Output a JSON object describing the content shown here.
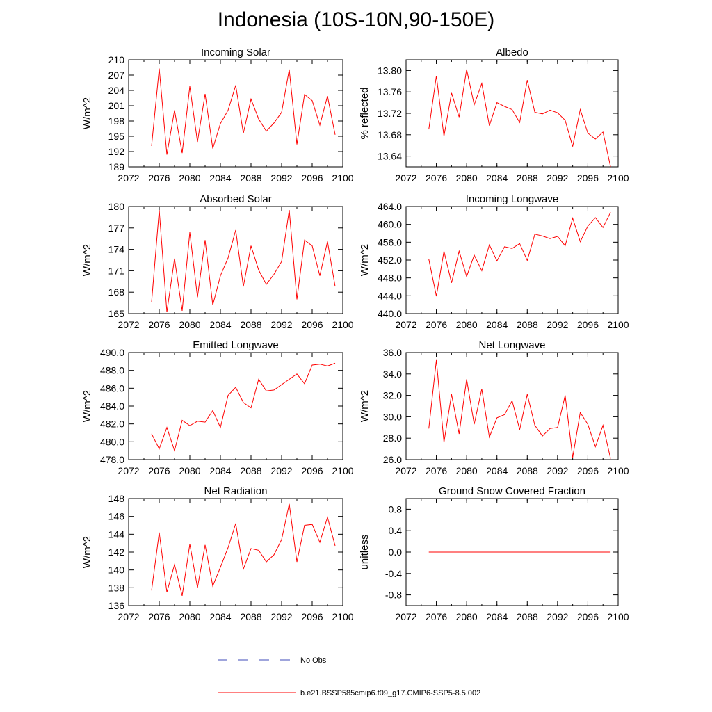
{
  "title": "Indonesia (10S-10N,90-150E)",
  "legend": [
    {
      "label": "No Obs",
      "color": "#3f4bb8",
      "style": "dashed"
    },
    {
      "label": "b.e21.BSSP585cmip6.f09_g17.CMIP6-SSP5-8.5.002",
      "color": "#ff0000",
      "style": "solid"
    }
  ],
  "chart_data": [
    {
      "type": "line",
      "title": "Incoming Solar",
      "ylabel": "W/m^2",
      "xlim": [
        2072,
        2100
      ],
      "xticks": [
        "2072",
        "2076",
        "2080",
        "2084",
        "2088",
        "2092",
        "2096",
        "2100"
      ],
      "ylim": [
        189,
        210
      ],
      "yticks": [
        "189",
        "192",
        "195",
        "198",
        "201",
        "204",
        "207",
        "210"
      ],
      "x": [
        2075,
        2076,
        2077,
        2078,
        2079,
        2080,
        2081,
        2082,
        2083,
        2084,
        2085,
        2086,
        2087,
        2088,
        2089,
        2090,
        2091,
        2092,
        2093,
        2094,
        2095,
        2096,
        2097,
        2098,
        2099
      ],
      "series": [
        {
          "values": [
            193.1,
            208.3,
            191.4,
            200.1,
            191.7,
            204.8,
            193.9,
            203.3,
            192.6,
            197.5,
            200.1,
            205.0,
            195.6,
            202.3,
            198.4,
            196.0,
            197.6,
            199.7,
            208.1,
            193.4,
            203.2,
            202.0,
            197.2,
            202.9,
            195.3
          ],
          "color": "#ff0000"
        }
      ]
    },
    {
      "type": "line",
      "title": "Albedo",
      "ylabel": "% reflected",
      "xlim": [
        2072,
        2100
      ],
      "xticks": [
        "2072",
        "2076",
        "2080",
        "2084",
        "2088",
        "2092",
        "2096",
        "2100"
      ],
      "ylim": [
        13.62,
        13.82
      ],
      "yticks": [
        "13.64",
        "13.68",
        "13.72",
        "13.76",
        "13.80"
      ],
      "x": [
        2075,
        2076,
        2077,
        2078,
        2079,
        2080,
        2081,
        2082,
        2083,
        2084,
        2085,
        2086,
        2087,
        2088,
        2089,
        2090,
        2091,
        2092,
        2093,
        2094,
        2095,
        2096,
        2097,
        2098,
        2099
      ],
      "series": [
        {
          "values": [
            13.69,
            13.79,
            13.677,
            13.758,
            13.713,
            13.802,
            13.736,
            13.776,
            13.697,
            13.74,
            13.733,
            13.727,
            13.703,
            13.782,
            13.722,
            13.719,
            13.726,
            13.721,
            13.707,
            13.658,
            13.727,
            13.683,
            13.672,
            13.685,
            13.62
          ],
          "color": "#ff0000"
        }
      ]
    },
    {
      "type": "line",
      "title": "Absorbed Solar",
      "ylabel": "W/m^2",
      "xlim": [
        2072,
        2100
      ],
      "xticks": [
        "2072",
        "2076",
        "2080",
        "2084",
        "2088",
        "2092",
        "2096",
        "2100"
      ],
      "ylim": [
        165,
        180
      ],
      "yticks": [
        "165",
        "168",
        "171",
        "174",
        "177",
        "180"
      ],
      "x": [
        2075,
        2076,
        2077,
        2078,
        2079,
        2080,
        2081,
        2082,
        2083,
        2084,
        2085,
        2086,
        2087,
        2088,
        2089,
        2090,
        2091,
        2092,
        2093,
        2094,
        2095,
        2096,
        2097,
        2098,
        2099
      ],
      "series": [
        {
          "values": [
            166.6,
            179.5,
            165.2,
            172.7,
            165.4,
            176.4,
            167.3,
            175.3,
            166.2,
            170.3,
            172.8,
            176.7,
            168.8,
            174.5,
            171.1,
            169.1,
            170.5,
            172.3,
            179.5,
            167.0,
            175.3,
            174.5,
            170.3,
            175.1,
            168.8
          ],
          "color": "#ff0000"
        }
      ]
    },
    {
      "type": "line",
      "title": "Incoming Longwave",
      "ylabel": "W/m^2",
      "xlim": [
        2072,
        2100
      ],
      "xticks": [
        "2072",
        "2076",
        "2080",
        "2084",
        "2088",
        "2092",
        "2096",
        "2100"
      ],
      "ylim": [
        440,
        464
      ],
      "yticks": [
        "440.0",
        "444.0",
        "448.0",
        "452.0",
        "456.0",
        "460.0",
        "464.0"
      ],
      "x": [
        2075,
        2076,
        2077,
        2078,
        2079,
        2080,
        2081,
        2082,
        2083,
        2084,
        2085,
        2086,
        2087,
        2088,
        2089,
        2090,
        2091,
        2092,
        2093,
        2094,
        2095,
        2096,
        2097,
        2098,
        2099
      ],
      "series": [
        {
          "values": [
            452.2,
            443.9,
            454.0,
            446.9,
            454.0,
            448.3,
            453.1,
            449.6,
            455.4,
            451.8,
            455.0,
            454.6,
            455.7,
            451.9,
            457.8,
            457.4,
            456.8,
            457.3,
            455.2,
            461.4,
            456.1,
            459.6,
            461.5,
            459.3,
            462.7
          ],
          "color": "#ff0000"
        }
      ]
    },
    {
      "type": "line",
      "title": "Emitted Longwave",
      "ylabel": "W/m^2",
      "xlim": [
        2072,
        2100
      ],
      "xticks": [
        "2072",
        "2076",
        "2080",
        "2084",
        "2088",
        "2092",
        "2096",
        "2100"
      ],
      "ylim": [
        478,
        490
      ],
      "yticks": [
        "478.0",
        "480.0",
        "482.0",
        "484.0",
        "486.0",
        "488.0",
        "490.0"
      ],
      "x": [
        2075,
        2076,
        2077,
        2078,
        2079,
        2080,
        2081,
        2082,
        2083,
        2084,
        2085,
        2086,
        2087,
        2088,
        2089,
        2090,
        2091,
        2092,
        2093,
        2094,
        2095,
        2096,
        2097,
        2098,
        2099
      ],
      "series": [
        {
          "values": [
            480.9,
            479.2,
            481.6,
            479.0,
            482.4,
            481.8,
            482.3,
            482.2,
            483.5,
            481.6,
            485.2,
            486.1,
            484.4,
            483.8,
            487.0,
            485.7,
            485.8,
            486.4,
            487.0,
            487.6,
            486.5,
            488.6,
            488.7,
            488.5,
            488.8
          ],
          "color": "#ff0000"
        }
      ]
    },
    {
      "type": "line",
      "title": "Net Longwave",
      "ylabel": "W/m^2",
      "xlim": [
        2072,
        2100
      ],
      "xticks": [
        "2072",
        "2076",
        "2080",
        "2084",
        "2088",
        "2092",
        "2096",
        "2100"
      ],
      "ylim": [
        26,
        36
      ],
      "yticks": [
        "26.0",
        "28.0",
        "30.0",
        "32.0",
        "34.0",
        "36.0"
      ],
      "x": [
        2075,
        2076,
        2077,
        2078,
        2079,
        2080,
        2081,
        2082,
        2083,
        2084,
        2085,
        2086,
        2087,
        2088,
        2089,
        2090,
        2091,
        2092,
        2093,
        2094,
        2095,
        2096,
        2097,
        2098,
        2099
      ],
      "series": [
        {
          "values": [
            28.9,
            35.3,
            27.6,
            32.1,
            28.4,
            33.5,
            29.3,
            32.6,
            28.1,
            29.9,
            30.2,
            31.5,
            28.8,
            32.1,
            29.2,
            28.2,
            28.9,
            29.0,
            32.0,
            26.2,
            30.4,
            29.3,
            27.2,
            29.2,
            26.1
          ],
          "color": "#ff0000"
        }
      ]
    },
    {
      "type": "line",
      "title": "Net Radiation",
      "ylabel": "W/m^2",
      "xlim": [
        2072,
        2100
      ],
      "xticks": [
        "2072",
        "2076",
        "2080",
        "2084",
        "2088",
        "2092",
        "2096",
        "2100"
      ],
      "ylim": [
        136,
        148
      ],
      "yticks": [
        "136",
        "138",
        "140",
        "142",
        "144",
        "146",
        "148"
      ],
      "x": [
        2075,
        2076,
        2077,
        2078,
        2079,
        2080,
        2081,
        2082,
        2083,
        2084,
        2085,
        2086,
        2087,
        2088,
        2089,
        2090,
        2091,
        2092,
        2093,
        2094,
        2095,
        2096,
        2097,
        2098,
        2099
      ],
      "series": [
        {
          "values": [
            137.7,
            144.2,
            137.5,
            140.6,
            137.1,
            142.9,
            138.0,
            142.8,
            138.2,
            140.3,
            142.5,
            145.2,
            140.1,
            142.4,
            142.2,
            140.9,
            141.7,
            143.4,
            147.4,
            140.9,
            145.0,
            145.1,
            143.1,
            145.9,
            142.7
          ],
          "color": "#ff0000"
        }
      ]
    },
    {
      "type": "line",
      "title": "Ground Snow Covered Fraction",
      "ylabel": "unitless",
      "xlim": [
        2072,
        2100
      ],
      "xticks": [
        "2072",
        "2076",
        "2080",
        "2084",
        "2088",
        "2092",
        "2096",
        "2100"
      ],
      "ylim": [
        -1.0,
        1.0
      ],
      "yticks": [
        "-0.8",
        "-0.4",
        "0.0",
        "0.4",
        "0.8"
      ],
      "x": [
        2075,
        2076,
        2077,
        2078,
        2079,
        2080,
        2081,
        2082,
        2083,
        2084,
        2085,
        2086,
        2087,
        2088,
        2089,
        2090,
        2091,
        2092,
        2093,
        2094,
        2095,
        2096,
        2097,
        2098,
        2099
      ],
      "series": [
        {
          "values": [
            0,
            0,
            0,
            0,
            0,
            0,
            0,
            0,
            0,
            0,
            0,
            0,
            0,
            0,
            0,
            0,
            0,
            0,
            0,
            0,
            0,
            0,
            0,
            0,
            0
          ],
          "color": "#ff0000"
        }
      ]
    }
  ]
}
